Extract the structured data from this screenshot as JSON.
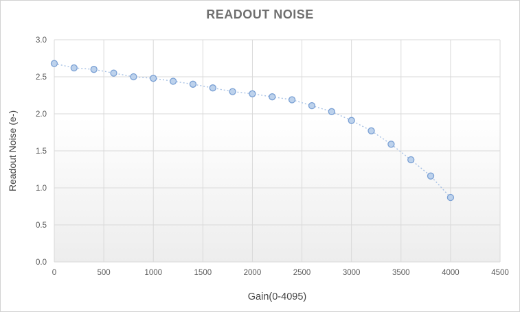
{
  "chart_data": {
    "type": "line",
    "title": "READOUT NOISE",
    "xlabel": "Gain(0-4095)",
    "ylabel": "Readout Noise (e-)",
    "xlim": [
      0,
      4500
    ],
    "ylim": [
      0.0,
      3.0
    ],
    "grid": true,
    "legend": false,
    "line_style": "dotted",
    "marker": "circle",
    "x": [
      0,
      200,
      400,
      600,
      800,
      1000,
      1200,
      1400,
      1600,
      1800,
      2000,
      2200,
      2400,
      2600,
      2800,
      3000,
      3200,
      3400,
      3600,
      3800,
      4000
    ],
    "y": [
      2.68,
      2.62,
      2.6,
      2.55,
      2.5,
      2.48,
      2.44,
      2.4,
      2.35,
      2.3,
      2.27,
      2.23,
      2.19,
      2.11,
      2.03,
      1.91,
      1.77,
      1.59,
      1.38,
      1.16,
      0.87
    ],
    "xticks": {
      "values": [
        0,
        500,
        1000,
        1500,
        2000,
        2500,
        3000,
        3500,
        4000,
        4500
      ],
      "labels": [
        "0",
        "500",
        "1000",
        "1500",
        "2000",
        "2500",
        "3000",
        "3500",
        "4000",
        "4500"
      ]
    },
    "yticks": {
      "values": [
        0.0,
        0.5,
        1.0,
        1.5,
        2.0,
        2.5,
        3.0
      ],
      "labels": [
        "0.0",
        "0.5",
        "1.0",
        "1.5",
        "2.0",
        "2.5",
        "3.0"
      ]
    },
    "colors": {
      "title": "#6f6f6f",
      "axis_title": "#444444",
      "tick_label": "#595959",
      "gridline": "#d9d9d9",
      "line": "#a6c0e4",
      "marker_fill": "#bdd2ec",
      "marker_stroke": "#7aa0d4",
      "plot_bg_top": "#ffffff",
      "plot_bg_bottom": "#ededed",
      "frame_border": "#d2d2d2"
    }
  }
}
